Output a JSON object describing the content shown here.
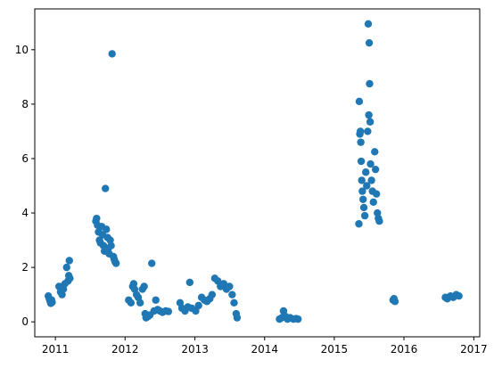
{
  "chart_data": {
    "type": "scatter",
    "title": "",
    "xlabel": "",
    "ylabel": "",
    "xlim": [
      "2010-09-15",
      "2017-02-01"
    ],
    "ylim": [
      -0.55,
      11.5
    ],
    "x_ticks": [
      "2011-01-01",
      "2012-01-01",
      "2013-01-01",
      "2014-01-01",
      "2015-01-01",
      "2016-01-01",
      "2017-01-01"
    ],
    "x_tick_labels": [
      "2011",
      "2012",
      "2013",
      "2014",
      "2015",
      "2016",
      "2017"
    ],
    "y_ticks": [
      0,
      2,
      4,
      6,
      8,
      10
    ],
    "y_tick_labels": [
      "0",
      "2",
      "4",
      "6",
      "8",
      "10"
    ],
    "grid": false,
    "marker_color": "#1f77b4",
    "points": [
      [
        "2010-11-25",
        0.95
      ],
      [
        "2010-11-30",
        0.85
      ],
      [
        "2010-12-05",
        0.75
      ],
      [
        "2010-12-08",
        0.68
      ],
      [
        "2010-12-12",
        0.8
      ],
      [
        "2010-12-15",
        0.72
      ],
      [
        "2011-01-20",
        1.3
      ],
      [
        "2011-01-28",
        1.1
      ],
      [
        "2011-02-05",
        1.0
      ],
      [
        "2011-02-12",
        1.2
      ],
      [
        "2011-02-20",
        1.4
      ],
      [
        "2011-03-01",
        2.0
      ],
      [
        "2011-03-08",
        1.5
      ],
      [
        "2011-03-12",
        1.7
      ],
      [
        "2011-03-15",
        2.25
      ],
      [
        "2011-03-18",
        1.6
      ],
      [
        "2011-08-01",
        3.7
      ],
      [
        "2011-08-05",
        3.8
      ],
      [
        "2011-08-10",
        3.55
      ],
      [
        "2011-08-15",
        3.3
      ],
      [
        "2011-08-20",
        3.0
      ],
      [
        "2011-08-25",
        2.9
      ],
      [
        "2011-09-01",
        3.5
      ],
      [
        "2011-09-05",
        3.2
      ],
      [
        "2011-09-10",
        2.8
      ],
      [
        "2011-09-15",
        2.6
      ],
      [
        "2011-09-20",
        4.9
      ],
      [
        "2011-09-25",
        3.4
      ],
      [
        "2011-10-01",
        3.1
      ],
      [
        "2011-10-05",
        2.7
      ],
      [
        "2011-10-10",
        2.5
      ],
      [
        "2011-10-15",
        3.0
      ],
      [
        "2011-10-20",
        2.8
      ],
      [
        "2011-10-25",
        9.85
      ],
      [
        "2011-11-01",
        2.4
      ],
      [
        "2011-11-05",
        2.3
      ],
      [
        "2011-11-10",
        2.2
      ],
      [
        "2011-11-15",
        2.15
      ],
      [
        "2012-01-20",
        0.8
      ],
      [
        "2012-02-01",
        0.7
      ],
      [
        "2012-02-10",
        1.3
      ],
      [
        "2012-02-15",
        1.4
      ],
      [
        "2012-02-20",
        1.2
      ],
      [
        "2012-03-01",
        1.0
      ],
      [
        "2012-03-10",
        0.9
      ],
      [
        "2012-03-20",
        0.7
      ],
      [
        "2012-04-01",
        1.2
      ],
      [
        "2012-04-10",
        1.3
      ],
      [
        "2012-04-15",
        0.3
      ],
      [
        "2012-04-20",
        0.15
      ],
      [
        "2012-05-01",
        0.2
      ],
      [
        "2012-05-10",
        0.25
      ],
      [
        "2012-05-20",
        2.15
      ],
      [
        "2012-06-01",
        0.4
      ],
      [
        "2012-06-10",
        0.8
      ],
      [
        "2012-06-20",
        0.45
      ],
      [
        "2012-07-01",
        0.4
      ],
      [
        "2012-07-15",
        0.35
      ],
      [
        "2012-08-01",
        0.4
      ],
      [
        "2012-08-15",
        0.38
      ],
      [
        "2012-10-15",
        0.7
      ],
      [
        "2012-10-25",
        0.5
      ],
      [
        "2012-11-10",
        0.4
      ],
      [
        "2012-11-25",
        0.55
      ],
      [
        "2012-12-05",
        1.45
      ],
      [
        "2012-12-15",
        0.5
      ],
      [
        "2013-01-05",
        0.4
      ],
      [
        "2013-01-20",
        0.6
      ],
      [
        "2013-02-05",
        0.9
      ],
      [
        "2013-02-20",
        0.8
      ],
      [
        "2013-03-05",
        0.75
      ],
      [
        "2013-03-20",
        0.85
      ],
      [
        "2013-04-01",
        1.0
      ],
      [
        "2013-04-15",
        1.6
      ],
      [
        "2013-05-01",
        1.5
      ],
      [
        "2013-05-15",
        1.3
      ],
      [
        "2013-06-01",
        1.4
      ],
      [
        "2013-06-15",
        1.2
      ],
      [
        "2013-07-01",
        1.3
      ],
      [
        "2013-07-15",
        1.0
      ],
      [
        "2013-07-25",
        0.7
      ],
      [
        "2013-08-05",
        0.3
      ],
      [
        "2013-08-10",
        0.15
      ],
      [
        "2014-03-20",
        0.1
      ],
      [
        "2014-04-01",
        0.15
      ],
      [
        "2014-04-10",
        0.4
      ],
      [
        "2014-04-20",
        0.2
      ],
      [
        "2014-05-01",
        0.1
      ],
      [
        "2014-05-15",
        0.15
      ],
      [
        "2014-06-01",
        0.1
      ],
      [
        "2014-06-15",
        0.12
      ],
      [
        "2014-06-25",
        0.1
      ],
      [
        "2015-05-10",
        3.6
      ],
      [
        "2015-05-12",
        8.1
      ],
      [
        "2015-05-15",
        6.9
      ],
      [
        "2015-05-18",
        7.0
      ],
      [
        "2015-05-20",
        6.6
      ],
      [
        "2015-05-22",
        5.9
      ],
      [
        "2015-05-25",
        5.2
      ],
      [
        "2015-05-28",
        4.8
      ],
      [
        "2015-06-01",
        4.5
      ],
      [
        "2015-06-05",
        4.2
      ],
      [
        "2015-06-10",
        3.9
      ],
      [
        "2015-06-15",
        5.5
      ],
      [
        "2015-06-20",
        5.0
      ],
      [
        "2015-06-25",
        7.0
      ],
      [
        "2015-06-28",
        10.95
      ],
      [
        "2015-07-01",
        7.6
      ],
      [
        "2015-07-03",
        10.25
      ],
      [
        "2015-07-05",
        8.75
      ],
      [
        "2015-07-08",
        7.35
      ],
      [
        "2015-07-10",
        5.8
      ],
      [
        "2015-07-15",
        5.2
      ],
      [
        "2015-07-20",
        4.8
      ],
      [
        "2015-07-25",
        4.4
      ],
      [
        "2015-08-01",
        6.25
      ],
      [
        "2015-08-05",
        5.6
      ],
      [
        "2015-08-10",
        4.7
      ],
      [
        "2015-08-15",
        4.0
      ],
      [
        "2015-08-20",
        3.8
      ],
      [
        "2015-08-25",
        3.7
      ],
      [
        "2015-11-05",
        0.8
      ],
      [
        "2015-11-10",
        0.85
      ],
      [
        "2015-11-15",
        0.75
      ],
      [
        "2016-08-05",
        0.9
      ],
      [
        "2016-08-15",
        0.85
      ],
      [
        "2016-09-01",
        0.95
      ],
      [
        "2016-09-15",
        0.9
      ],
      [
        "2016-10-01",
        1.0
      ],
      [
        "2016-10-15",
        0.95
      ]
    ]
  }
}
